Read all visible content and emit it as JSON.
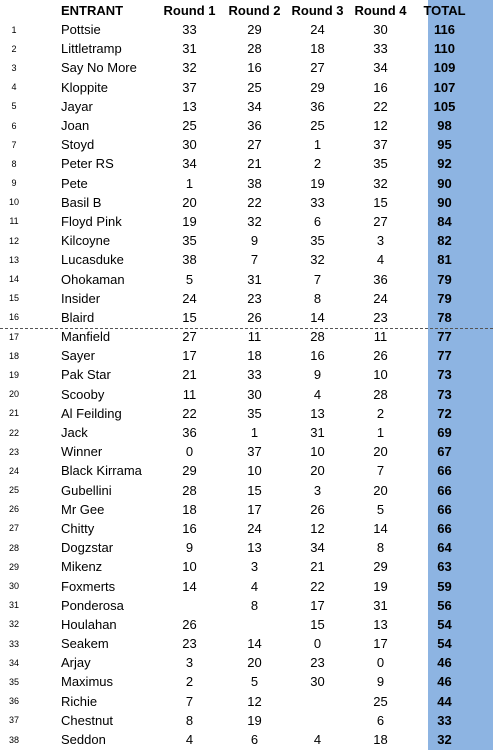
{
  "headers": {
    "num": "",
    "entrant": "ENTRANT",
    "r1": "Round 1",
    "r2": "Round 2",
    "r3": "Round 3",
    "r4": "Round 4",
    "total": "TOTAL"
  },
  "rows": [
    {
      "num": "1",
      "name": "Pottsie",
      "r1": "33",
      "r2": "29",
      "r3": "24",
      "r4": "30",
      "total": "116"
    },
    {
      "num": "2",
      "name": "Littletramp",
      "r1": "31",
      "r2": "28",
      "r3": "18",
      "r4": "33",
      "total": "110"
    },
    {
      "num": "3",
      "name": "Say No More",
      "r1": "32",
      "r2": "16",
      "r3": "27",
      "r4": "34",
      "total": "109"
    },
    {
      "num": "4",
      "name": "Kloppite",
      "r1": "37",
      "r2": "25",
      "r3": "29",
      "r4": "16",
      "total": "107"
    },
    {
      "num": "5",
      "name": "Jayar",
      "r1": "13",
      "r2": "34",
      "r3": "36",
      "r4": "22",
      "total": "105"
    },
    {
      "num": "6",
      "name": "Joan",
      "r1": "25",
      "r2": "36",
      "r3": "25",
      "r4": "12",
      "total": "98"
    },
    {
      "num": "7",
      "name": "Stoyd",
      "r1": "30",
      "r2": "27",
      "r3": "1",
      "r4": "37",
      "total": "95"
    },
    {
      "num": "8",
      "name": "Peter RS",
      "r1": "34",
      "r2": "21",
      "r3": "2",
      "r4": "35",
      "total": "92"
    },
    {
      "num": "9",
      "name": "Pete",
      "r1": "1",
      "r2": "38",
      "r3": "19",
      "r4": "32",
      "total": "90"
    },
    {
      "num": "10",
      "name": "Basil B",
      "r1": "20",
      "r2": "22",
      "r3": "33",
      "r4": "15",
      "total": "90"
    },
    {
      "num": "11",
      "name": "Floyd Pink",
      "r1": "19",
      "r2": "32",
      "r3": "6",
      "r4": "27",
      "total": "84"
    },
    {
      "num": "12",
      "name": "Kilcoyne",
      "r1": "35",
      "r2": "9",
      "r3": "35",
      "r4": "3",
      "total": "82"
    },
    {
      "num": "13",
      "name": "Lucasduke",
      "r1": "38",
      "r2": "7",
      "r3": "32",
      "r4": "4",
      "total": "81"
    },
    {
      "num": "14",
      "name": "Ohokaman",
      "r1": "5",
      "r2": "31",
      "r3": "7",
      "r4": "36",
      "total": "79"
    },
    {
      "num": "15",
      "name": "Insider",
      "r1": "24",
      "r2": "23",
      "r3": "8",
      "r4": "24",
      "total": "79"
    },
    {
      "num": "16",
      "name": "Blaird",
      "r1": "15",
      "r2": "26",
      "r3": "14",
      "r4": "23",
      "total": "78"
    },
    {
      "num": "17",
      "name": "Manfield",
      "r1": "27",
      "r2": "11",
      "r3": "28",
      "r4": "11",
      "total": "77"
    },
    {
      "num": "18",
      "name": "Sayer",
      "r1": "17",
      "r2": "18",
      "r3": "16",
      "r4": "26",
      "total": "77"
    },
    {
      "num": "19",
      "name": "Pak Star",
      "r1": "21",
      "r2": "33",
      "r3": "9",
      "r4": "10",
      "total": "73"
    },
    {
      "num": "20",
      "name": "Scooby",
      "r1": "11",
      "r2": "30",
      "r3": "4",
      "r4": "28",
      "total": "73"
    },
    {
      "num": "21",
      "name": "Al Feilding",
      "r1": "22",
      "r2": "35",
      "r3": "13",
      "r4": "2",
      "total": "72"
    },
    {
      "num": "22",
      "name": "Jack",
      "r1": "36",
      "r2": "1",
      "r3": "31",
      "r4": "1",
      "total": "69"
    },
    {
      "num": "23",
      "name": "Winner",
      "r1": "0",
      "r2": "37",
      "r3": "10",
      "r4": "20",
      "total": "67"
    },
    {
      "num": "24",
      "name": "Black Kirrama",
      "r1": "29",
      "r2": "10",
      "r3": "20",
      "r4": "7",
      "total": "66"
    },
    {
      "num": "25",
      "name": "Gubellini",
      "r1": "28",
      "r2": "15",
      "r3": "3",
      "r4": "20",
      "total": "66"
    },
    {
      "num": "26",
      "name": "Mr Gee",
      "r1": "18",
      "r2": "17",
      "r3": "26",
      "r4": "5",
      "total": "66"
    },
    {
      "num": "27",
      "name": "Chitty",
      "r1": "16",
      "r2": "24",
      "r3": "12",
      "r4": "14",
      "total": "66"
    },
    {
      "num": "28",
      "name": "Dogzstar",
      "r1": "9",
      "r2": "13",
      "r3": "34",
      "r4": "8",
      "total": "64"
    },
    {
      "num": "29",
      "name": "Mikenz",
      "r1": "10",
      "r2": "3",
      "r3": "21",
      "r4": "29",
      "total": "63"
    },
    {
      "num": "30",
      "name": "Foxmerts",
      "r1": "14",
      "r2": "4",
      "r3": "22",
      "r4": "19",
      "total": "59"
    },
    {
      "num": "31",
      "name": "Ponderosa",
      "r1": "",
      "r2": "8",
      "r3": "17",
      "r4": "31",
      "total": "56"
    },
    {
      "num": "32",
      "name": "Houlahan",
      "r1": "26",
      "r2": "",
      "r3": "15",
      "r4": "13",
      "total": "54"
    },
    {
      "num": "33",
      "name": "Seakem",
      "r1": "23",
      "r2": "14",
      "r3": "0",
      "r4": "17",
      "total": "54"
    },
    {
      "num": "34",
      "name": "Arjay",
      "r1": "3",
      "r2": "20",
      "r3": "23",
      "r4": "0",
      "total": "46"
    },
    {
      "num": "35",
      "name": "Maximus",
      "r1": "2",
      "r2": "5",
      "r3": "30",
      "r4": "9",
      "total": "46"
    },
    {
      "num": "36",
      "name": "Richie",
      "r1": "7",
      "r2": "12",
      "r3": "",
      "r4": "25",
      "total": "44"
    },
    {
      "num": "37",
      "name": "Chestnut",
      "r1": "8",
      "r2": "19",
      "r3": "",
      "r4": "6",
      "total": "33"
    },
    {
      "num": "38",
      "name": "Seddon",
      "r1": "4",
      "r2": "6",
      "r3": "4",
      "r4": "18",
      "total": "32"
    }
  ],
  "cut_after_row": 15,
  "colors": {
    "total_column": "#8db4e2",
    "cut_line": "#555555"
  }
}
